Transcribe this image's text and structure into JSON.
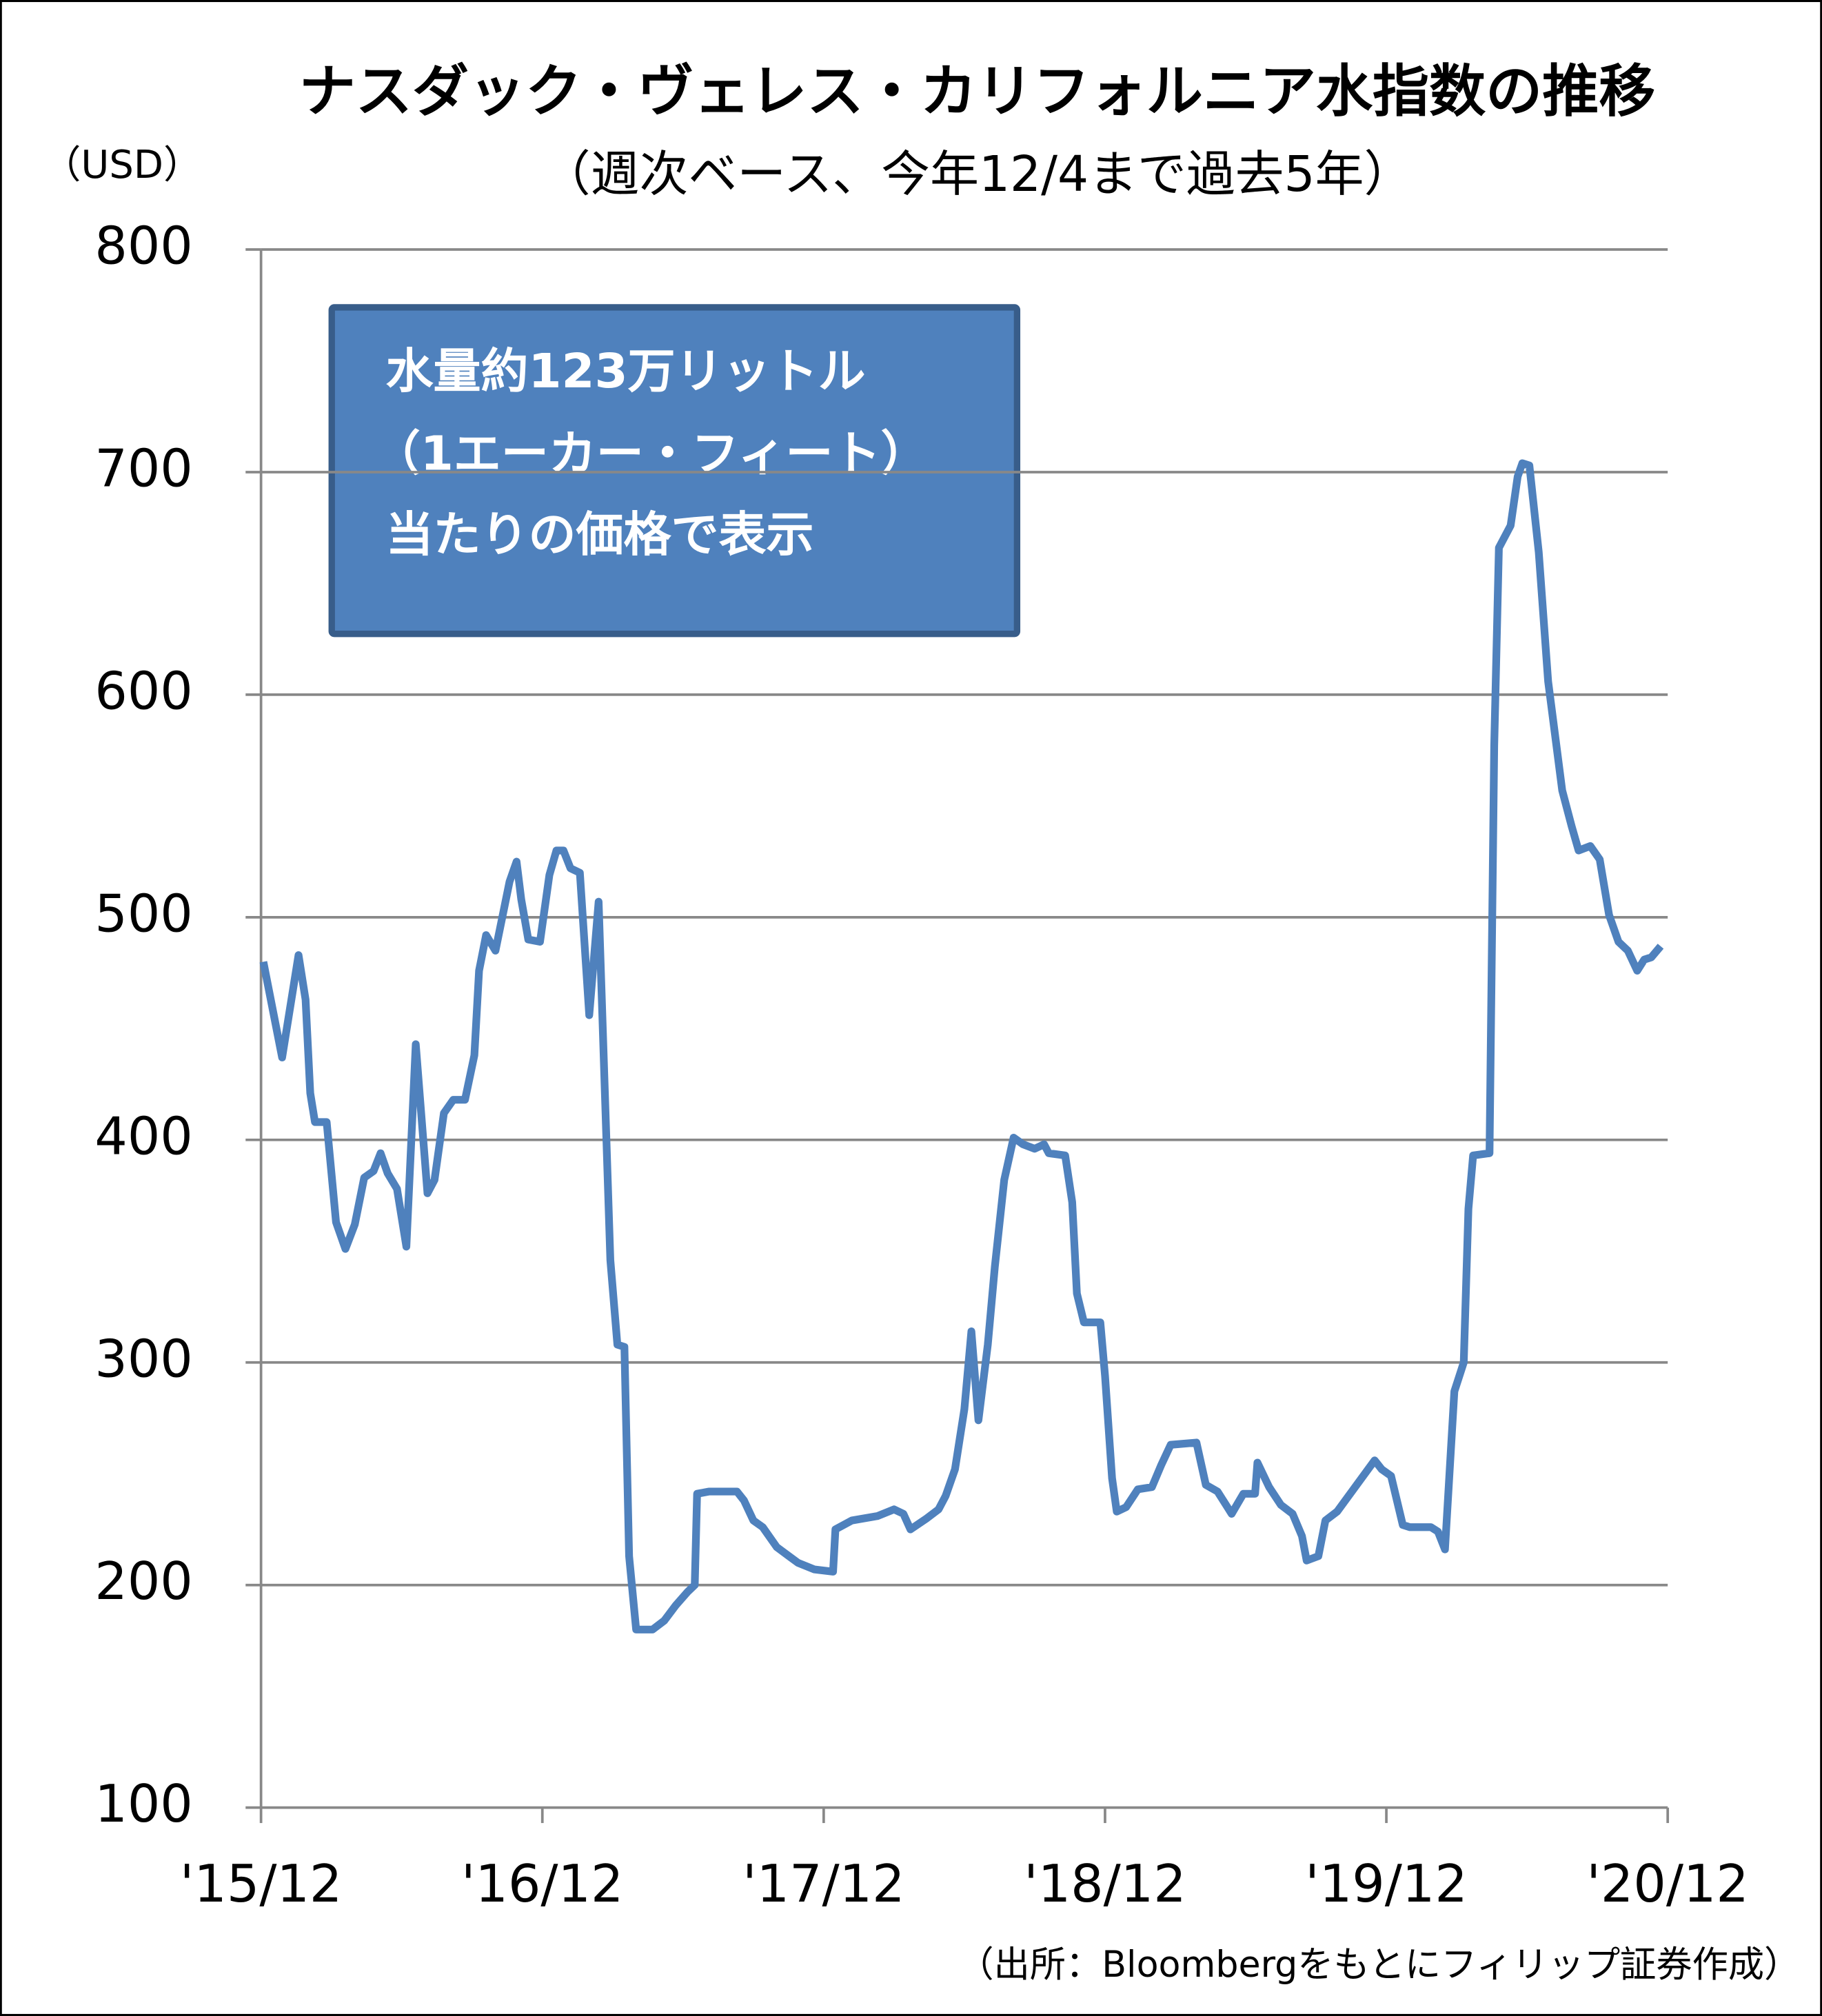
{
  "chart_data": {
    "type": "line",
    "title": "ナスダック・ヴェレス・カリフォルニア水指数の推移",
    "subtitle": "（週次ベース、今年12/4まで過去5年）",
    "y_unit": "（USD）",
    "annotation": [
      "水量約123万リットル",
      "（1エーカー・フィート）",
      "当たりの価格で表示"
    ],
    "source": "（出所：Bloombergをもとにフィリップ証券作成）",
    "x": [
      0.1,
      0.9,
      1.6,
      1.9,
      2.1,
      2.3,
      2.8,
      3.2,
      3.6,
      4.0,
      4.4,
      4.8,
      5.1,
      5.4,
      5.8,
      6.2,
      6.6,
      7.1,
      7.4,
      7.8,
      8.2,
      8.7,
      9.1,
      9.3,
      9.6,
      10.0,
      10.6,
      10.9,
      11.1,
      11.4,
      11.9,
      12.3,
      12.6,
      12.9,
      13.2,
      13.6,
      14.0,
      14.4,
      14.9,
      15.2,
      15.5,
      15.7,
      16.0,
      16.7,
      17.2,
      17.7,
      18.2,
      18.5,
      18.6,
      19.1,
      20.3,
      20.6,
      21.0,
      21.4,
      22.0,
      22.9,
      23.6,
      24.4,
      24.5,
      25.2,
      26.3,
      27.0,
      27.4,
      27.7,
      28.4,
      28.9,
      29.2,
      29.6,
      30.0,
      30.3,
      30.6,
      31.0,
      31.3,
      31.7,
      32.1,
      32.5,
      33.0,
      33.4,
      33.6,
      34.3,
      34.6,
      34.8,
      35.1,
      35.8,
      36.0,
      36.3,
      36.5,
      36.9,
      37.4,
      38.0,
      38.4,
      38.8,
      39.9,
      40.3,
      40.8,
      41.4,
      41.9,
      42.4,
      42.5,
      43.0,
      43.5,
      44.0,
      44.4,
      44.6,
      45.1,
      45.4,
      45.9,
      47.5,
      47.8,
      48.2,
      48.7,
      49.0,
      49.9,
      50.2,
      50.5,
      50.9,
      51.3,
      51.5,
      51.7,
      52.4,
      52.6,
      52.8,
      53.3,
      53.6,
      53.8,
      54.1,
      54.5,
      54.9,
      55.5,
      55.9,
      56.2,
      56.7,
      57.1,
      57.5,
      57.9,
      58.3,
      58.7,
      59.0,
      59.3,
      59.7
    ],
    "series": [
      {
        "color": "#4f81bd",
        "values": [
          480,
          437,
          483,
          463,
          421,
          408,
          408,
          363,
          351,
          362,
          383,
          386,
          394,
          385,
          378,
          352,
          443,
          376,
          382,
          412,
          418,
          418,
          438,
          476,
          492,
          485,
          516,
          525,
          508,
          490,
          489,
          519,
          530,
          530,
          522,
          520,
          456,
          507,
          346,
          308,
          307,
          213,
          180,
          180,
          184,
          191,
          197,
          200,
          241,
          242,
          242,
          238,
          229,
          226,
          217,
          210,
          207,
          206,
          225,
          229,
          231,
          234,
          232,
          225,
          230,
          234,
          240,
          252,
          279,
          314,
          274,
          308,
          343,
          382,
          401,
          398,
          396,
          398,
          394,
          393,
          372,
          331,
          318,
          318,
          294,
          248,
          233,
          235,
          243,
          244,
          254,
          263,
          264,
          245,
          242,
          232,
          241,
          241,
          255,
          244,
          236,
          232,
          222,
          211,
          213,
          229,
          233,
          256,
          252,
          249,
          227,
          226,
          226,
          224,
          216,
          287,
          300,
          369,
          393,
          394,
          577,
          666,
          676,
          698,
          704,
          703,
          664,
          606,
          557,
          541,
          530,
          532,
          526,
          501,
          489,
          485,
          476,
          481,
          482,
          487
        ]
      }
    ],
    "xlim": [
      0,
      60
    ],
    "xticks": [
      {
        "value": 0,
        "label": "'15/12"
      },
      {
        "value": 12,
        "label": "'16/12"
      },
      {
        "value": 24,
        "label": "'17/12"
      },
      {
        "value": 36,
        "label": "'18/12"
      },
      {
        "value": 48,
        "label": "'19/12"
      },
      {
        "value": 60,
        "label": "'20/12"
      }
    ],
    "ylim": [
      100,
      800
    ],
    "yticks": [
      100,
      200,
      300,
      400,
      500,
      600,
      700,
      800
    ],
    "grid": true
  }
}
